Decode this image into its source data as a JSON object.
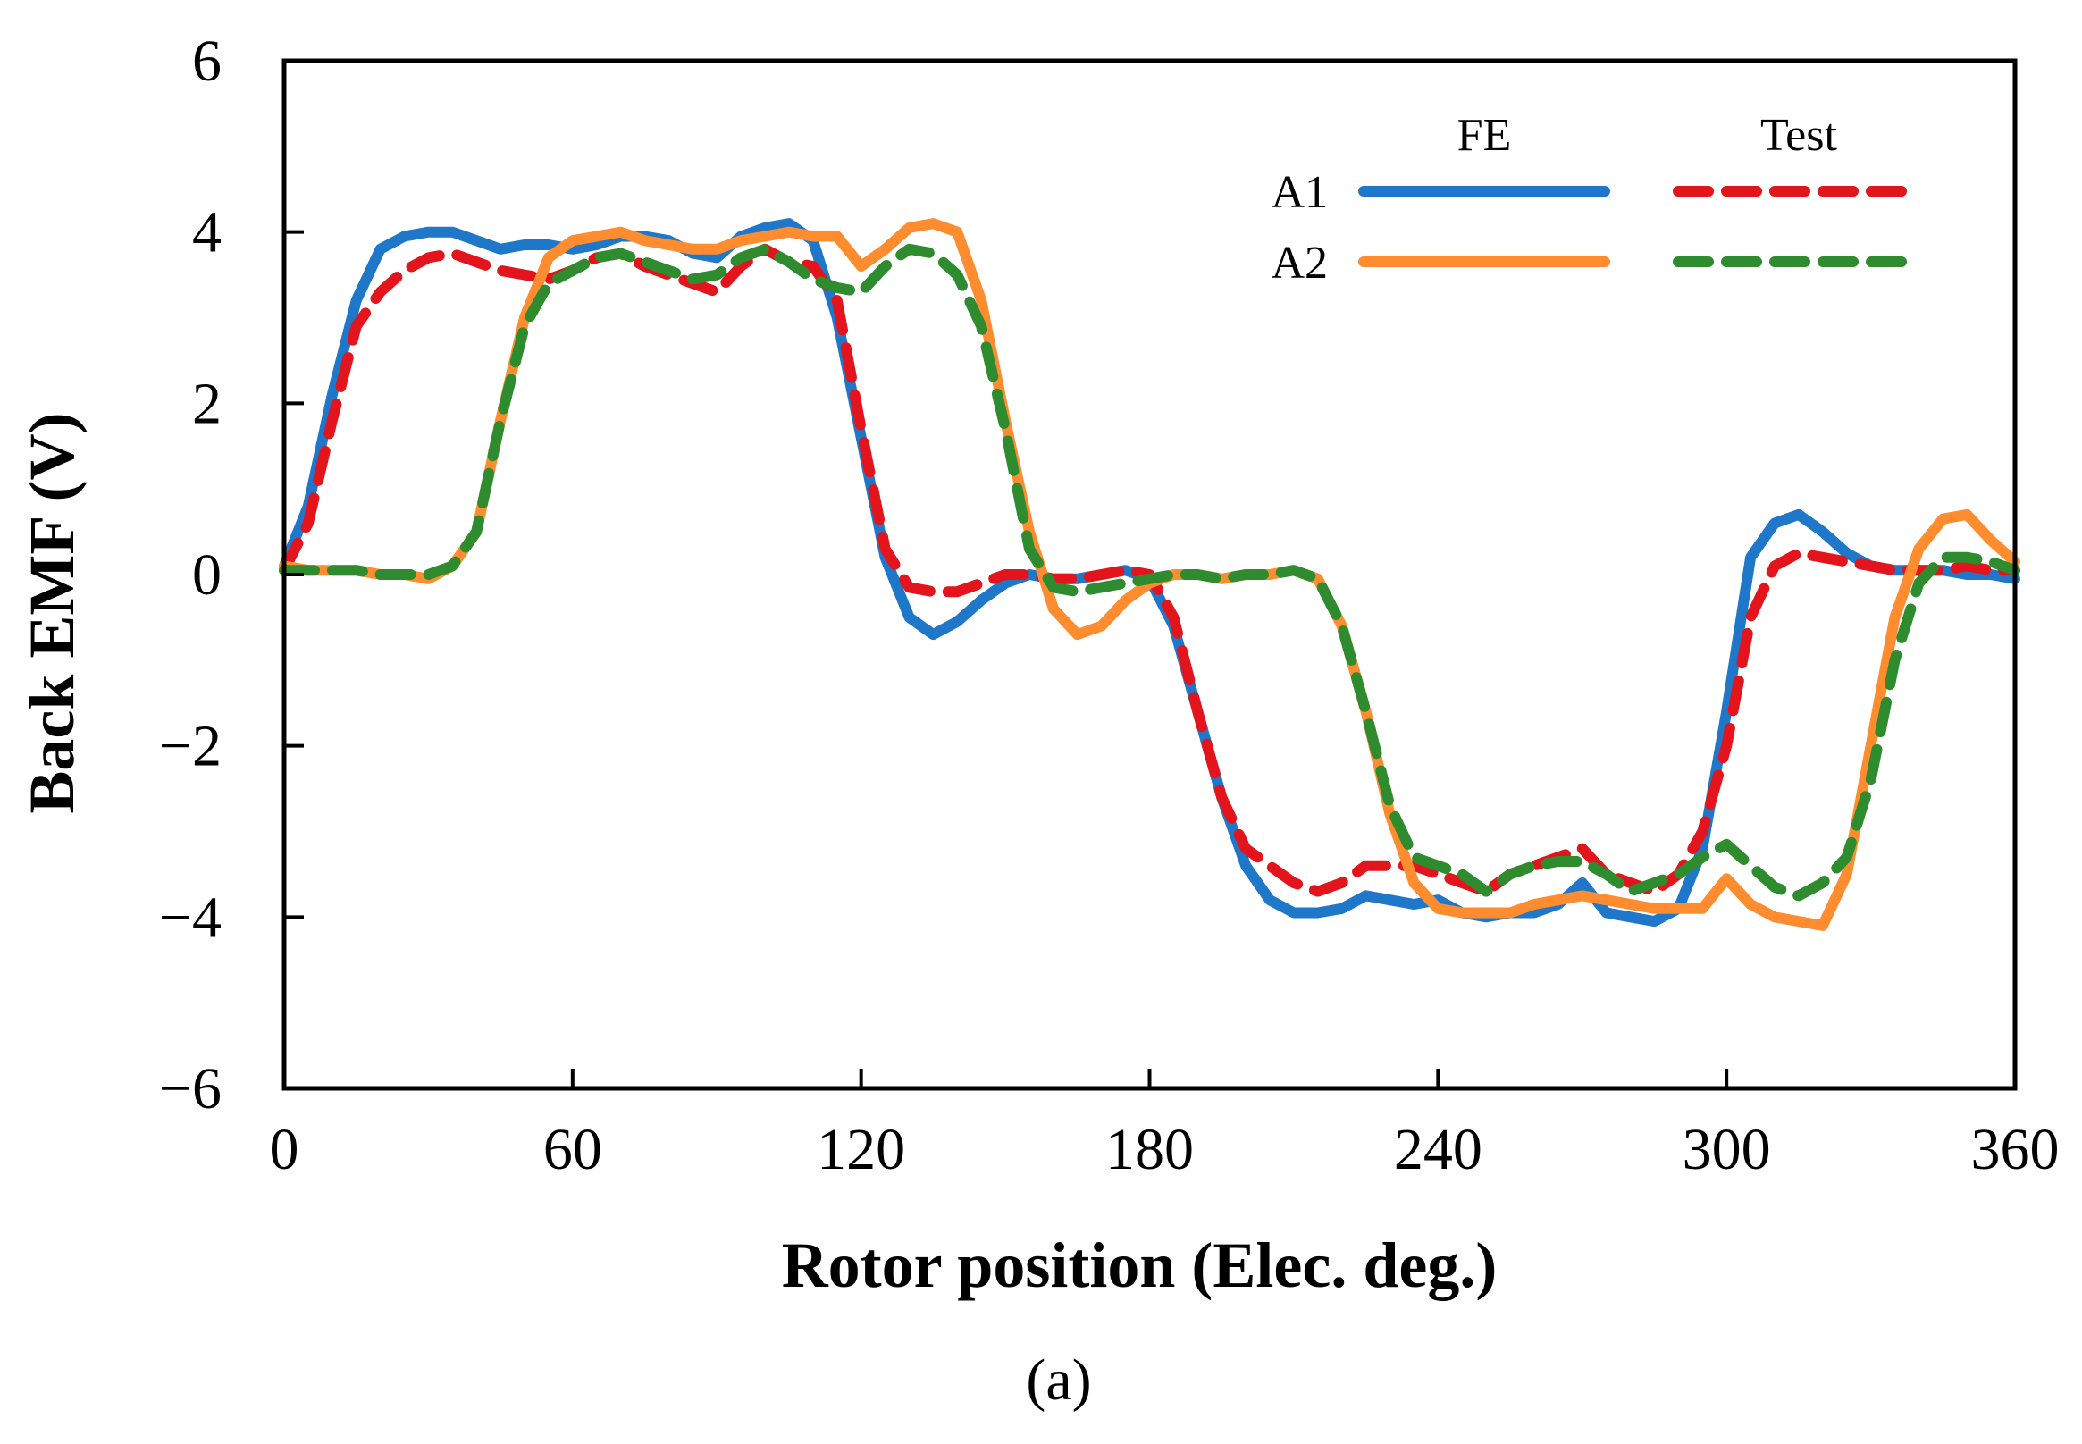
{
  "chart_data": {
    "type": "line",
    "title": "",
    "xlabel": "Rotor position (Elec. deg.)",
    "ylabel": "Back EMF (V)",
    "xlim": [
      0,
      360
    ],
    "ylim": [
      -6,
      6
    ],
    "xticks": [
      0,
      60,
      120,
      180,
      240,
      300,
      360
    ],
    "yticks": [
      -6,
      -4,
      -2,
      0,
      2,
      4,
      6
    ],
    "xtick_labels": [
      "0",
      "60",
      "120",
      "180",
      "240",
      "300",
      "360"
    ],
    "ytick_labels": [
      "−6",
      "−4",
      "−2",
      "0",
      "2",
      "4",
      "6"
    ],
    "legend": {
      "position": "top-right",
      "column_headers": [
        "FE",
        "Test"
      ],
      "row_labels": [
        "A1",
        "A2"
      ]
    },
    "series": [
      {
        "name": "A1 FE",
        "color": "#1f77c9",
        "dash": "solid",
        "x": [
          0,
          5,
          10,
          15,
          20,
          25,
          30,
          35,
          40,
          45,
          50,
          55,
          60,
          65,
          70,
          75,
          80,
          85,
          90,
          95,
          100,
          105,
          110,
          115,
          120,
          125,
          130,
          135,
          140,
          145,
          150,
          155,
          160,
          165,
          170,
          175,
          180,
          185,
          190,
          195,
          200,
          205,
          210,
          215,
          220,
          225,
          230,
          235,
          240,
          245,
          250,
          255,
          260,
          265,
          270,
          275,
          280,
          285,
          290,
          295,
          300,
          305,
          310,
          315,
          320,
          325,
          330,
          335,
          340,
          345,
          350,
          355,
          360
        ],
        "y": [
          0.1,
          0.8,
          2.1,
          3.2,
          3.8,
          3.95,
          4.0,
          4.0,
          3.9,
          3.8,
          3.85,
          3.85,
          3.8,
          3.85,
          3.95,
          3.95,
          3.9,
          3.75,
          3.7,
          3.95,
          4.05,
          4.1,
          3.9,
          3.0,
          1.6,
          0.2,
          -0.5,
          -0.7,
          -0.55,
          -0.3,
          -0.1,
          0.0,
          -0.05,
          -0.05,
          0.0,
          0.05,
          -0.05,
          -0.6,
          -1.6,
          -2.6,
          -3.4,
          -3.8,
          -3.95,
          -3.95,
          -3.9,
          -3.75,
          -3.8,
          -3.85,
          -3.8,
          -3.95,
          -4.0,
          -3.95,
          -3.95,
          -3.85,
          -3.6,
          -3.95,
          -4.0,
          -4.05,
          -3.9,
          -3.2,
          -1.6,
          0.2,
          0.6,
          0.7,
          0.5,
          0.25,
          0.1,
          0.05,
          0.05,
          0.05,
          0.0,
          0.0,
          -0.05
        ]
      },
      {
        "name": "A1 Test",
        "color": "#e3141b",
        "dash": "dashed",
        "x": [
          0,
          5,
          10,
          15,
          20,
          25,
          30,
          35,
          40,
          45,
          50,
          55,
          60,
          65,
          70,
          75,
          80,
          85,
          90,
          95,
          100,
          105,
          110,
          115,
          120,
          125,
          130,
          135,
          140,
          145,
          150,
          155,
          160,
          165,
          170,
          175,
          180,
          185,
          190,
          195,
          200,
          205,
          210,
          215,
          220,
          225,
          230,
          235,
          240,
          245,
          250,
          255,
          260,
          265,
          270,
          275,
          280,
          285,
          290,
          295,
          300,
          305,
          310,
          315,
          320,
          325,
          330,
          335,
          340,
          345,
          350,
          355,
          360
        ],
        "y": [
          0.05,
          0.6,
          1.8,
          2.9,
          3.3,
          3.55,
          3.7,
          3.75,
          3.65,
          3.55,
          3.5,
          3.45,
          3.55,
          3.7,
          3.75,
          3.6,
          3.5,
          3.4,
          3.3,
          3.6,
          3.8,
          3.65,
          3.6,
          3.2,
          1.7,
          0.3,
          -0.15,
          -0.2,
          -0.2,
          -0.1,
          0.0,
          0.0,
          -0.05,
          -0.05,
          0.0,
          0.05,
          0.0,
          -0.5,
          -1.6,
          -2.6,
          -3.2,
          -3.4,
          -3.6,
          -3.7,
          -3.6,
          -3.4,
          -3.4,
          -3.4,
          -3.5,
          -3.6,
          -3.7,
          -3.5,
          -3.4,
          -3.3,
          -3.2,
          -3.5,
          -3.6,
          -3.7,
          -3.5,
          -3.0,
          -2.0,
          -0.5,
          0.1,
          0.25,
          0.2,
          0.15,
          0.1,
          0.05,
          0.05,
          0.05,
          0.1,
          0.05,
          0.05
        ]
      },
      {
        "name": "A2 FE",
        "color": "#ff8c2e",
        "dash": "solid",
        "x": [
          0,
          5,
          10,
          15,
          20,
          25,
          30,
          35,
          40,
          45,
          50,
          55,
          60,
          65,
          70,
          75,
          80,
          85,
          90,
          95,
          100,
          105,
          110,
          115,
          120,
          125,
          130,
          135,
          140,
          145,
          150,
          155,
          160,
          165,
          170,
          175,
          180,
          185,
          190,
          195,
          200,
          205,
          210,
          215,
          220,
          225,
          230,
          235,
          240,
          245,
          250,
          255,
          260,
          265,
          270,
          275,
          280,
          285,
          290,
          295,
          300,
          305,
          310,
          315,
          320,
          325,
          330,
          335,
          340,
          345,
          350,
          355,
          360
        ],
        "y": [
          0.1,
          0.05,
          0.05,
          0.05,
          0.0,
          0.0,
          -0.05,
          0.1,
          0.5,
          1.8,
          3.0,
          3.7,
          3.9,
          3.95,
          4.0,
          3.9,
          3.85,
          3.8,
          3.8,
          3.9,
          3.95,
          4.0,
          3.95,
          3.95,
          3.6,
          3.8,
          4.05,
          4.1,
          4.0,
          3.2,
          1.8,
          0.5,
          -0.4,
          -0.7,
          -0.6,
          -0.3,
          -0.1,
          0.0,
          0.0,
          -0.05,
          0.0,
          0.0,
          0.05,
          -0.05,
          -0.6,
          -1.6,
          -2.8,
          -3.6,
          -3.9,
          -3.95,
          -3.95,
          -3.95,
          -3.85,
          -3.8,
          -3.75,
          -3.8,
          -3.85,
          -3.9,
          -3.9,
          -3.9,
          -3.55,
          -3.85,
          -4.0,
          -4.05,
          -4.1,
          -3.5,
          -2.0,
          -0.5,
          0.3,
          0.65,
          0.7,
          0.4,
          0.15
        ]
      },
      {
        "name": "A2 Test",
        "color": "#2e8b2e",
        "dash": "dashed",
        "x": [
          0,
          5,
          10,
          15,
          20,
          25,
          30,
          35,
          40,
          45,
          50,
          55,
          60,
          65,
          70,
          75,
          80,
          85,
          90,
          95,
          100,
          105,
          110,
          115,
          120,
          125,
          130,
          135,
          140,
          145,
          150,
          155,
          160,
          165,
          170,
          175,
          180,
          185,
          190,
          195,
          200,
          205,
          210,
          215,
          220,
          225,
          230,
          235,
          240,
          245,
          250,
          255,
          260,
          265,
          270,
          275,
          280,
          285,
          290,
          295,
          300,
          305,
          310,
          315,
          320,
          325,
          330,
          335,
          340,
          345,
          350,
          355,
          360
        ],
        "y": [
          0.05,
          0.05,
          0.05,
          0.05,
          0.0,
          0.0,
          0.0,
          0.1,
          0.5,
          1.8,
          2.9,
          3.4,
          3.55,
          3.7,
          3.75,
          3.65,
          3.55,
          3.45,
          3.5,
          3.7,
          3.8,
          3.65,
          3.45,
          3.35,
          3.3,
          3.6,
          3.8,
          3.75,
          3.5,
          2.9,
          1.7,
          0.3,
          -0.15,
          -0.2,
          -0.15,
          -0.1,
          -0.05,
          0.0,
          0.0,
          -0.05,
          0.0,
          0.0,
          0.05,
          -0.05,
          -0.6,
          -1.6,
          -2.7,
          -3.3,
          -3.4,
          -3.5,
          -3.7,
          -3.5,
          -3.4,
          -3.35,
          -3.35,
          -3.5,
          -3.7,
          -3.6,
          -3.5,
          -3.3,
          -3.15,
          -3.4,
          -3.65,
          -3.75,
          -3.6,
          -3.3,
          -2.4,
          -1.0,
          -0.1,
          0.2,
          0.2,
          0.15,
          0.05
        ]
      }
    ],
    "caption": "(a)"
  }
}
